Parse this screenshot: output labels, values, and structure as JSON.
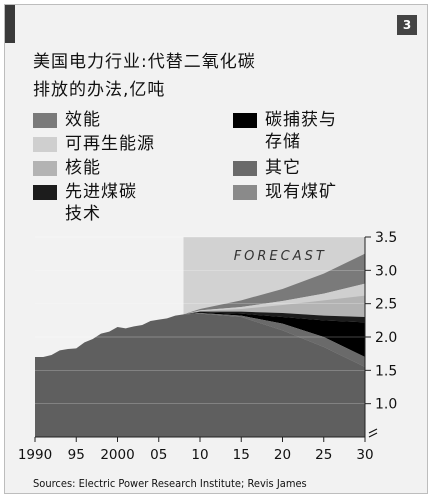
{
  "chart_number": "3",
  "title_line1": "美国电力行业:代替二氧化碳",
  "title_line2": "排放的办法,亿吨",
  "forecast_label": "FORECAST",
  "source": "Sources: Electric Power Research Institute; Revis James",
  "legend": [
    {
      "label": "效能",
      "color": "#7a7a7a",
      "col": 0,
      "row": 0
    },
    {
      "label": "可再生能源",
      "color": "#cfcfcf",
      "col": 0,
      "row": 1
    },
    {
      "label": "核能",
      "color": "#b3b3b3",
      "col": 0,
      "row": 2
    },
    {
      "label": "先进煤碳\n技术",
      "color": "#1c1c1c",
      "col": 0,
      "row": 3
    },
    {
      "label": "碳捕获与\n存储",
      "color": "#000000",
      "col": 1,
      "row": 0
    },
    {
      "label": "其它",
      "color": "#6a6a6a",
      "col": 1,
      "row": 2
    },
    {
      "label": "现有煤矿",
      "color": "#8a8a8a",
      "col": 1,
      "row": 3
    }
  ],
  "chart_data": {
    "type": "area",
    "forecast_start": 2008,
    "xlim": [
      1990,
      2030
    ],
    "ylim": [
      0.5,
      3.5
    ],
    "y_ticks": [
      "1.0",
      "1.5",
      "2.0",
      "2.5",
      "3.0",
      "3.5"
    ],
    "y_tick_values": [
      1.0,
      1.5,
      2.0,
      2.5,
      3.0,
      3.5
    ],
    "x_ticks": [
      "1990",
      "95",
      "2000",
      "05",
      "10",
      "15",
      "20",
      "25",
      "30"
    ],
    "x_tick_values": [
      1990,
      1995,
      2000,
      2005,
      2010,
      2015,
      2020,
      2025,
      2030
    ],
    "historical": {
      "x": [
        1990,
        1991,
        1992,
        1993,
        1994,
        1995,
        1996,
        1997,
        1998,
        1999,
        2000,
        2001,
        2002,
        2003,
        2004,
        2005,
        2006,
        2007,
        2008
      ],
      "y": [
        1.7,
        1.7,
        1.73,
        1.8,
        1.82,
        1.83,
        1.92,
        1.97,
        2.05,
        2.08,
        2.15,
        2.13,
        2.16,
        2.18,
        2.24,
        2.26,
        2.28,
        2.32,
        2.34
      ]
    },
    "forecast_x": [
      2008,
      2010,
      2015,
      2020,
      2025,
      2030
    ],
    "forecast_series": [
      {
        "name": "现有煤矿",
        "color": "#5f5f5f",
        "top": [
          2.34,
          2.35,
          2.3,
          2.1,
          1.85,
          1.55
        ]
      },
      {
        "name": "其它",
        "color": "#6a6a6a",
        "top": [
          2.34,
          2.36,
          2.32,
          2.2,
          2.0,
          1.7
        ]
      },
      {
        "name": "碳捕获与存储",
        "color": "#000000",
        "top": [
          2.34,
          2.37,
          2.35,
          2.3,
          2.25,
          2.22
        ]
      },
      {
        "name": "先进煤碳技术",
        "color": "#1c1c1c",
        "top": [
          2.34,
          2.38,
          2.38,
          2.36,
          2.32,
          2.3
        ]
      },
      {
        "name": "核能",
        "color": "#b3b3b3",
        "top": [
          2.34,
          2.39,
          2.42,
          2.48,
          2.55,
          2.62
        ]
      },
      {
        "name": "可再生能源",
        "color": "#cfcfcf",
        "top": [
          2.34,
          2.4,
          2.45,
          2.54,
          2.65,
          2.8
        ]
      },
      {
        "name": "效能",
        "color": "#7a7a7a",
        "top": [
          2.34,
          2.42,
          2.55,
          2.72,
          2.95,
          3.25
        ]
      }
    ]
  }
}
